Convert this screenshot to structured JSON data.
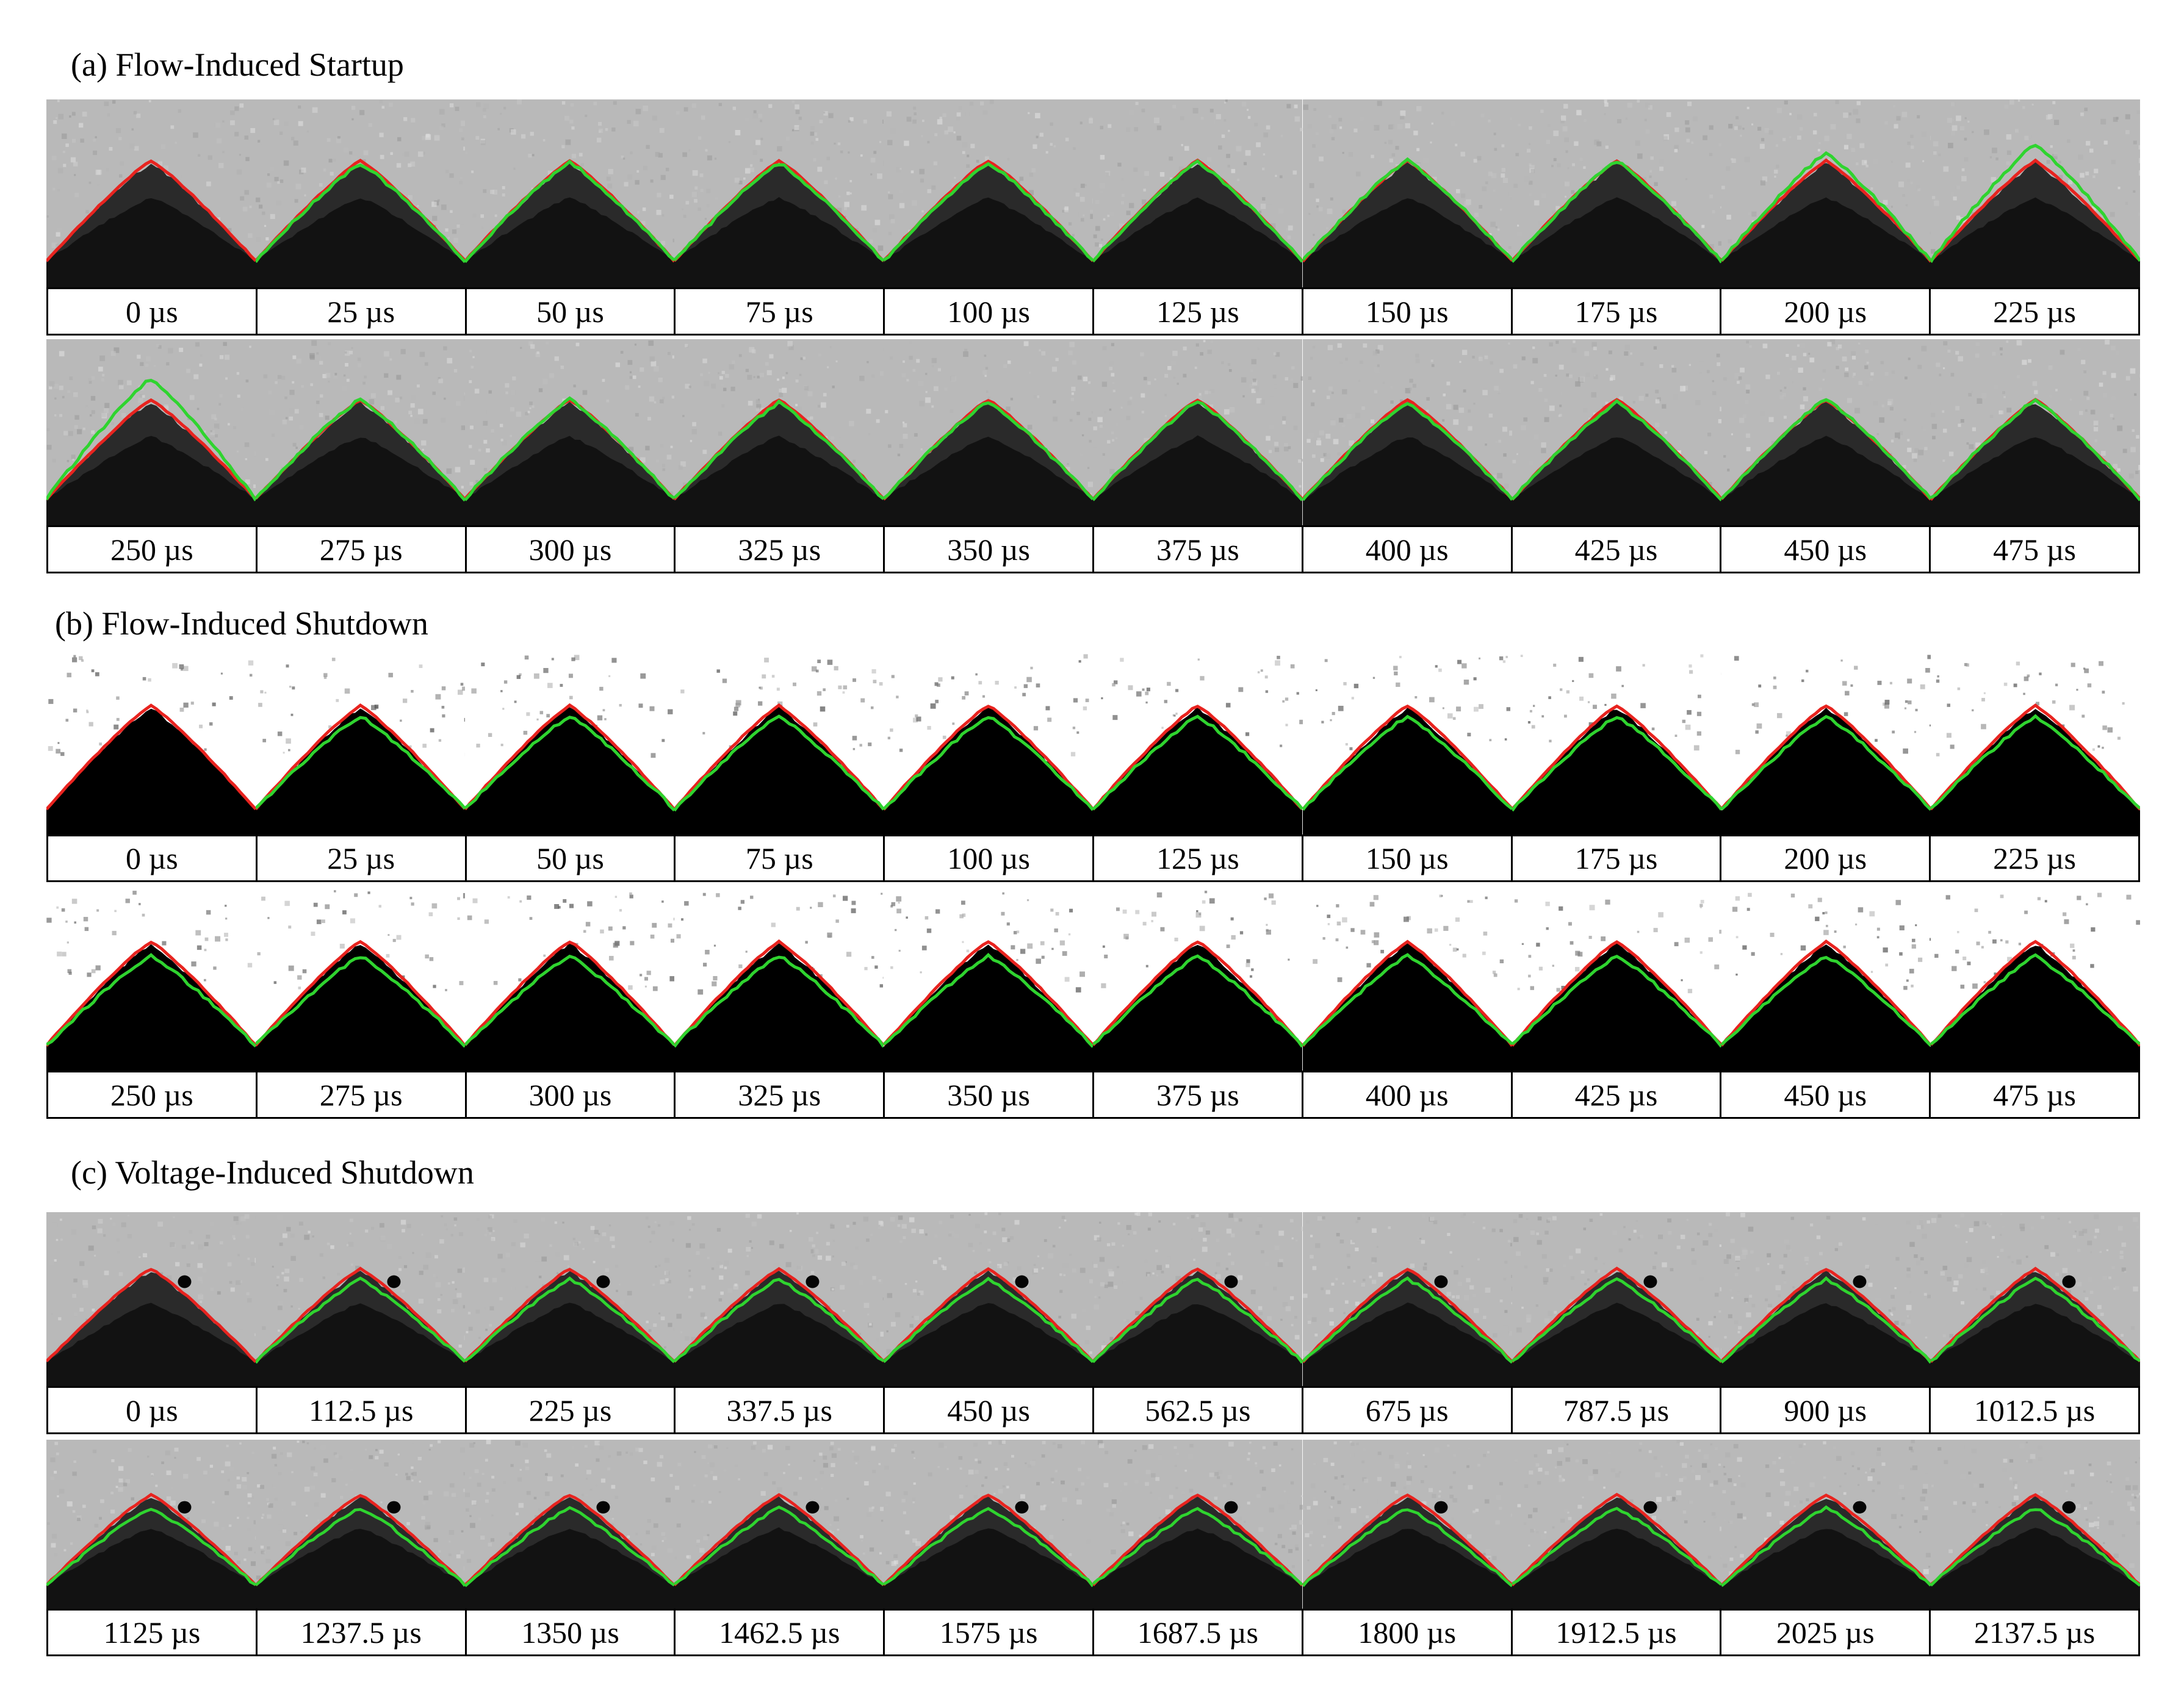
{
  "figure": {
    "sections": [
      {
        "id": "a",
        "title": "(a) Flow-Induced Startup",
        "style": "gray",
        "rows": [
          {
            "labels": [
              "0 µs",
              "25 µs",
              "50 µs",
              "75 µs",
              "100 µs",
              "125 µs",
              "150 µs",
              "175  µs",
              "200 µs",
              "225  µs"
            ]
          },
          {
            "labels": [
              "250 µs",
              "275 µs",
              "300 µs",
              "325  µs",
              "350 µs",
              "375 µs",
              "400 µs",
              "425 µs",
              "450  µs",
              "475  µs"
            ]
          }
        ]
      },
      {
        "id": "b",
        "title": "(b) Flow-Induced Shutdown",
        "style": "binary",
        "rows": [
          {
            "labels": [
              "0 µs",
              "25 µs",
              "50 µs",
              "75 µs",
              "100 µs",
              "125 µs",
              "150 µs",
              "175 µs",
              "200 µs",
              "225 µs"
            ]
          },
          {
            "labels": [
              "250 µs",
              "275 µs",
              "300 µs",
              "325  µs",
              "350 µs",
              "375 µs",
              "400 µs",
              "425 µs",
              "450 µs",
              "475 µs"
            ]
          }
        ]
      },
      {
        "id": "c",
        "title": "(c) Voltage-Induced Shutdown",
        "style": "gray-dot",
        "rows": [
          {
            "labels": [
              "0 µs",
              "112.5  µs",
              "225 µs",
              "337.5 µs",
              "450 µs",
              "562.5 µs",
              "675 µs",
              "787.5 µs",
              "900 µs",
              "1012.5  µs"
            ]
          },
          {
            "labels": [
              "1125  µs",
              "1237.5  µs",
              "1350  µs",
              "1462.5  µs",
              "1575  µs",
              "1687.5  µs",
              "1800  µs",
              "1912.5  µs",
              "2025  µs",
              "2137.5  µs"
            ]
          }
        ]
      }
    ],
    "colors": {
      "initial_contour": "#e8231f",
      "current_contour": "#2fd42f",
      "background_gray": "#b9b9b9",
      "meniscus_dark": "#2a2a2a"
    }
  }
}
